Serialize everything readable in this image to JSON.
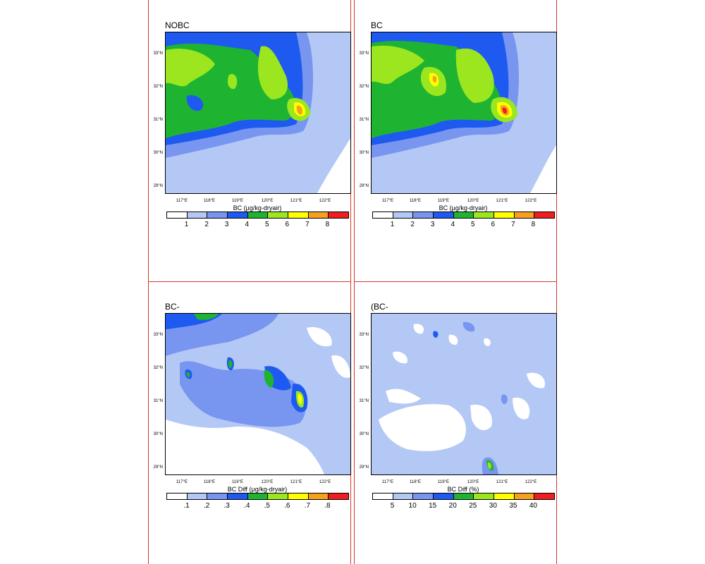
{
  "panels": [
    {
      "title": "NOBC",
      "colorbar_title": "BC (µg/kg-dryair)",
      "colorbar_labels": [
        "1",
        "2",
        "3",
        "4",
        "5",
        "6",
        "7",
        "8"
      ]
    },
    {
      "title": "BC",
      "colorbar_title": "BC (µg/kg-dryair)",
      "colorbar_labels": [
        "1",
        "2",
        "3",
        "4",
        "5",
        "6",
        "7",
        "8"
      ]
    },
    {
      "title": "BC-NOBC",
      "colorbar_title": "BC Diff (µg/kg-dryair)",
      "colorbar_labels": [
        ".1",
        ".2",
        ".3",
        ".4",
        ".5",
        ".6",
        ".7",
        ".8"
      ]
    },
    {
      "title": "(BC-NOBC)/NOBC",
      "colorbar_title": "BC Diff (%)",
      "colorbar_labels": [
        "5",
        "10",
        "15",
        "20",
        "25",
        "30",
        "35",
        "40"
      ]
    }
  ],
  "lat_labels": [
    "33°N",
    "32°N",
    "31°N",
    "30°N",
    "29°N"
  ],
  "lon_labels": [
    "117°E",
    "118°E",
    "119°E",
    "120°E",
    "121°E",
    "122°E"
  ],
  "colorbar_colors": [
    "#ffffff",
    "#b4c8f5",
    "#7896f0",
    "#1e5af0",
    "#1eb432",
    "#9be61e",
    "#ffff00",
    "#f5a01e",
    "#f01e1e"
  ]
}
